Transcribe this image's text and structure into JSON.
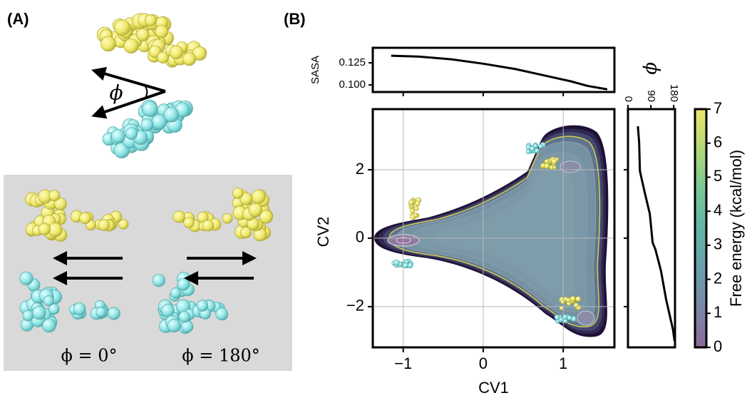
{
  "panel_a": {
    "label": "(A)",
    "angle_symbol": "ϕ",
    "captions": [
      "ϕ = 0°",
      "ϕ = 180°"
    ]
  },
  "panel_b_label": "(B)",
  "chart_data": [
    {
      "type": "contour",
      "xlabel": "CV1",
      "ylabel": "CV2",
      "xlim": [
        -1.38,
        1.64
      ],
      "ylim": [
        -3.19,
        3.77
      ],
      "xticks": [
        {
          "value": -1,
          "label": "−1"
        },
        0,
        1
      ],
      "yticks": [
        {
          "value": -2,
          "label": "−2"
        },
        0,
        2
      ],
      "grid": true
    },
    {
      "type": "line",
      "ylabel": "SASA",
      "color": "#000000",
      "x": [
        -1.15,
        -0.8,
        -0.4,
        0,
        0.4,
        0.8,
        1.1,
        1.3,
        1.55
      ],
      "values": [
        0.133,
        0.132,
        0.129,
        0.124,
        0.118,
        0.11,
        0.104,
        0.099,
        0.095
      ],
      "xlim": [
        -1.38,
        1.64
      ],
      "xticks": [
        -1,
        0,
        1
      ],
      "ylim": [
        0.092,
        0.142
      ],
      "yticks": [
        {
          "value": 0.1,
          "label": "0.100"
        },
        {
          "value": 0.125,
          "label": "0.125"
        }
      ]
    },
    {
      "type": "vline",
      "xlabel": "ϕ",
      "color": "#000000",
      "y": [
        3.27,
        2.79,
        1.96,
        1.33,
        0.71,
        -0.13,
        -0.33,
        -0.96,
        -1.79,
        -2.67,
        -3.0
      ],
      "values": [
        39,
        44,
        47,
        66,
        86,
        97,
        108,
        130,
        150,
        177,
        183
      ],
      "xlim": [
        0,
        185
      ],
      "xticks": [
        0,
        90,
        180
      ],
      "ylim": [
        -3.19,
        3.77
      ],
      "yticks": [
        -2,
        0,
        2
      ]
    },
    {
      "type": "colorbar",
      "label": "Free energy (kcal/mol)",
      "clim": [
        0,
        7
      ],
      "ticks": [
        0,
        1,
        2,
        3,
        4,
        5,
        6,
        7
      ],
      "colors": [
        "#8a6a98",
        "#7a88a8",
        "#6aa0ac",
        "#62b4a6",
        "#78c896",
        "#b2d878",
        "#ece66a"
      ]
    }
  ]
}
